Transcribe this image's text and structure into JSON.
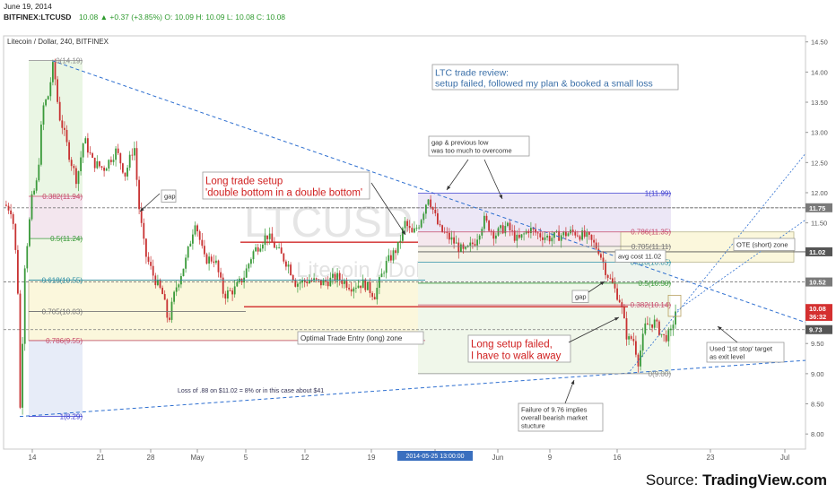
{
  "header": {
    "date": "June 19, 2014",
    "symbol": "BITFINEX:LTCUSD",
    "quote": "10.08 ▲ +0.37 (+3.85%) O: 10.09 H: 10.09 L: 10.08 C: 10.08"
  },
  "chart_data": {
    "type": "candlestick",
    "title": "Litecoin / Dollar, 240, BITFINEX",
    "watermark": "LTCUSD, 240",
    "watermark_sub": "Litecoin / Dollar",
    "ylim": [
      7.75,
      14.6
    ],
    "y_ticks": [
      "14.50",
      "14.00",
      "13.50",
      "13.00",
      "12.50",
      "12.00",
      "11.50",
      "11.00",
      "10.50",
      "10.00",
      "9.50",
      "9.00",
      "8.50",
      "8.00"
    ],
    "x_ticks": [
      "14",
      "21",
      "28",
      "May",
      "5",
      "12",
      "19",
      "2014-05-25 13:00:00",
      "Jun",
      "9",
      "16",
      "23",
      "Jul"
    ],
    "price_badges": [
      {
        "label": "11.75",
        "value": 11.75,
        "color": "#7a7a7a"
      },
      {
        "label": "11.02",
        "value": 11.02,
        "color": "#555555"
      },
      {
        "label": "10.52",
        "value": 10.52,
        "color": "#7a7a7a"
      },
      {
        "label": "10.08",
        "value": 10.08,
        "color": "#d43030"
      },
      {
        "label": "36:32",
        "value": 9.95,
        "color": "#d43030"
      },
      {
        "label": "9.73",
        "value": 9.73,
        "color": "#555555"
      }
    ],
    "fib_left": [
      {
        "label": "0(14.19)",
        "value": 14.19,
        "color": "#888888"
      },
      {
        "label": "0.382(11.94)",
        "value": 11.94,
        "color": "#c64a6a"
      },
      {
        "label": "0.5(11.24)",
        "value": 11.24,
        "color": "#3c9a3c"
      },
      {
        "label": "0.618(10.55)",
        "value": 10.55,
        "color": "#2f8fa5"
      },
      {
        "label": "0.705(10.03)",
        "value": 10.03,
        "color": "#777777"
      },
      {
        "label": "0.786(9.55)",
        "value": 9.55,
        "color": "#c64a6a"
      },
      {
        "label": "1(8.29)",
        "value": 8.29,
        "color": "#3a3ad0"
      }
    ],
    "fib_right": [
      {
        "label": "1(11.99)",
        "value": 11.99,
        "color": "#3a3ad0"
      },
      {
        "label": "0.786(11.35)",
        "value": 11.35,
        "color": "#c64a6a"
      },
      {
        "label": "0.705(11.11)",
        "value": 11.11,
        "color": "#777777"
      },
      {
        "label": "0.618(10.85)",
        "value": 10.85,
        "color": "#2f8fa5"
      },
      {
        "label": "0.5(10.50)",
        "value": 10.5,
        "color": "#3c9a3c"
      },
      {
        "label": "0.382(10.14)",
        "value": 10.14,
        "color": "#c64a6a"
      },
      {
        "label": "0(9.00)",
        "value": 9.0,
        "color": "#888888"
      }
    ],
    "annotations": {
      "review_title": "LTC trade review:",
      "review_body": "setup failed, followed my plan & booked a small loss",
      "setup_title": "Long trade setup",
      "setup_body": "'double bottom in a double bottom'",
      "gap_left": "gap",
      "gap_right": "gap",
      "gap_prev_1": "gap & previous low",
      "gap_prev_2": "was too much to overcome",
      "ote_short": "OTE (short) zone",
      "avg_cost": "avg cost 11.02",
      "ote_long": "Optimal Trade Entry (long) zone",
      "failed_1": "Long setup failed,",
      "failed_2": "I have to walk away",
      "stop_1": "Used '1st stop' target",
      "stop_2": "as exit level",
      "loss": "Loss of .88 on $11.02 = 8% or in this case about $41",
      "fail976_1": "Failure of 9.76 implies",
      "fail976_2": "overall bearish market",
      "fail976_3": "stucture"
    },
    "colors": {
      "up": "#3a9a3a",
      "down": "#c83232"
    }
  },
  "footer": {
    "source_prefix": "Source: ",
    "source_brand": "TradingView.com"
  }
}
